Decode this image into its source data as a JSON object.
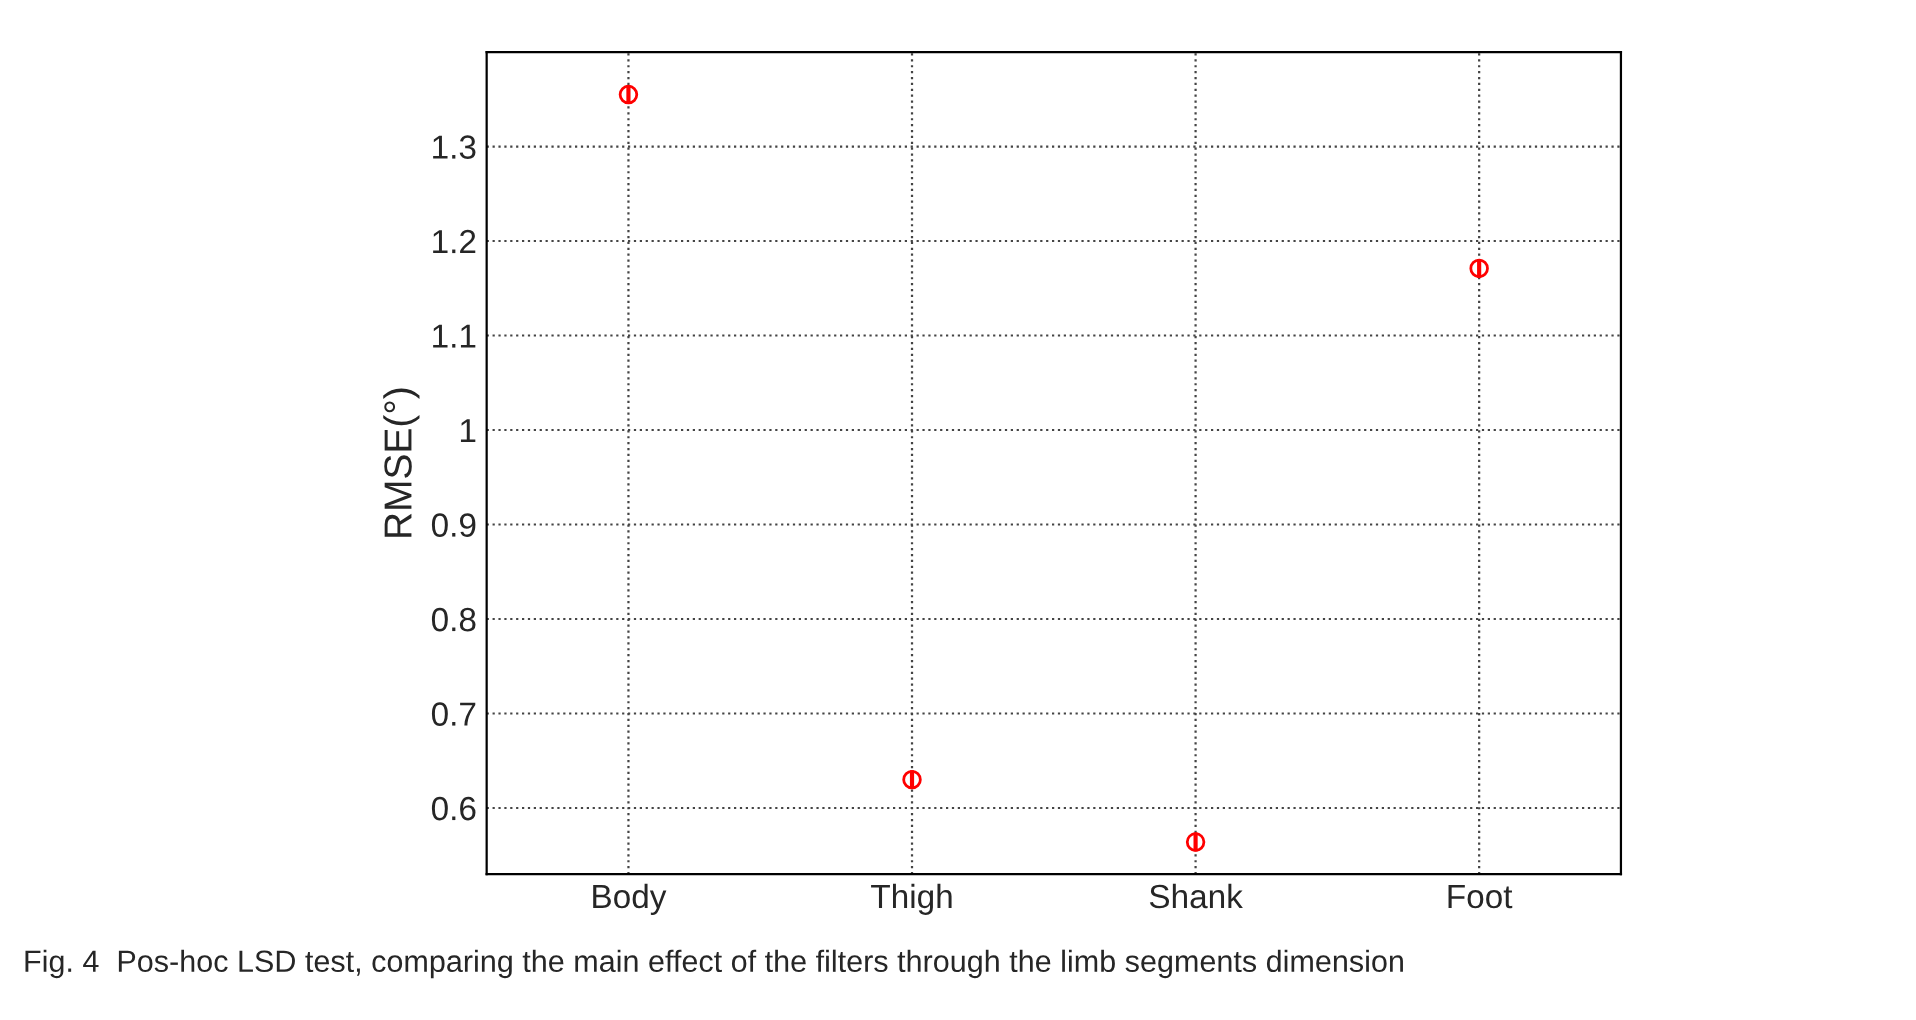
{
  "chart_data": {
    "type": "scatter",
    "ylabel": "RMSE(°)",
    "categories": [
      "Body",
      "Thigh",
      "Shank",
      "Foot"
    ],
    "series": [
      {
        "color": "#ff0000",
        "values": [
          1.355,
          0.63,
          0.564,
          1.171
        ],
        "errors": [
          0.01,
          0.01,
          0.01,
          0.01
        ]
      }
    ],
    "ylim": [
      0.53,
      1.4
    ],
    "yticks": [
      0.6,
      0.7,
      0.8,
      0.9,
      1,
      1.1,
      1.2,
      1.3
    ],
    "grid": true,
    "marker": "circle",
    "legend": false,
    "annotations": [
      "Fig. 4  Pos-hoc LSD test, comparing the main effect of the filters through the limb segments dimension"
    ]
  }
}
